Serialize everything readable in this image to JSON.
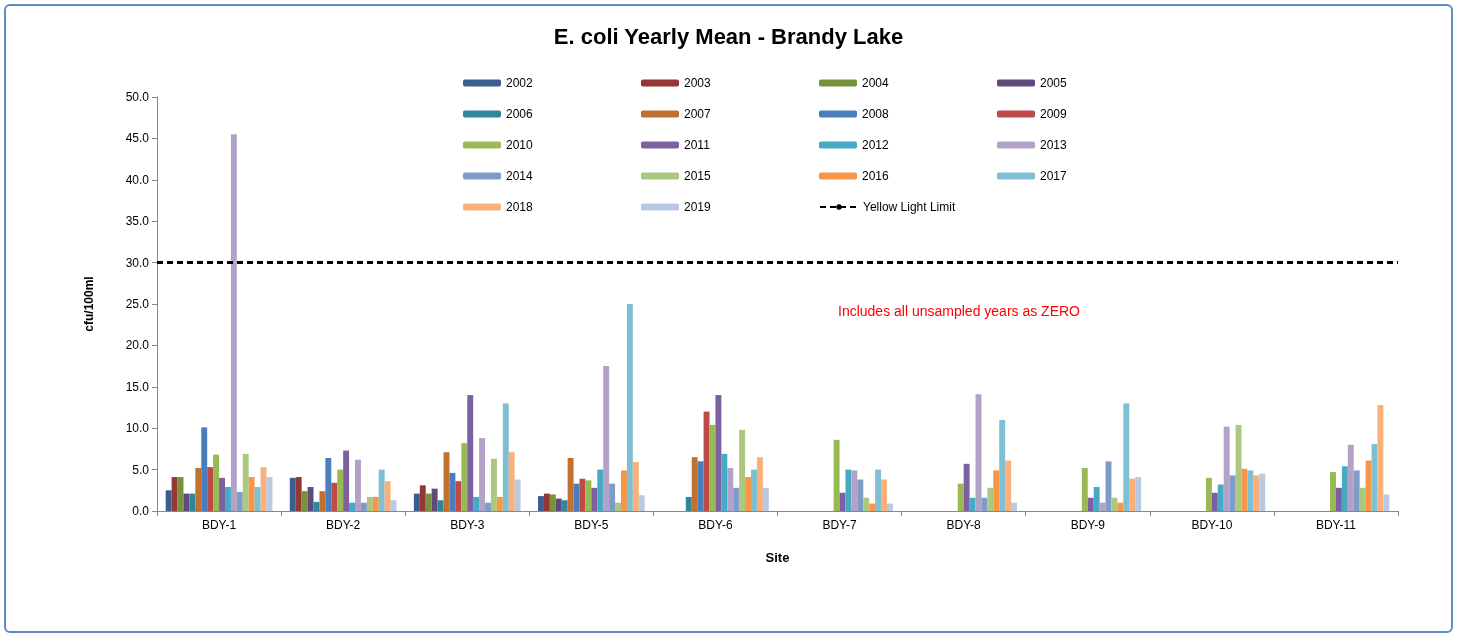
{
  "chart_data": {
    "type": "bar",
    "title": "E. coli Yearly Mean - Brandy Lake",
    "xlabel": "Site",
    "ylabel": "cfu/100ml",
    "categories": [
      "BDY-1",
      "BDY-2",
      "BDY-3",
      "BDY-5",
      "BDY-6",
      "BDY-7",
      "BDY-8",
      "BDY-9",
      "BDY-10",
      "BDY-11"
    ],
    "series": [
      {
        "name": "2002",
        "color": "#3b5e91",
        "values": [
          2.5,
          4.0,
          2.1,
          1.8,
          0,
          0,
          0,
          0,
          0,
          0
        ]
      },
      {
        "name": "2003",
        "color": "#953735",
        "values": [
          4.1,
          4.1,
          3.1,
          2.1,
          0,
          0,
          0,
          0,
          0,
          0
        ]
      },
      {
        "name": "2004",
        "color": "#77933c",
        "values": [
          4.1,
          2.4,
          2.1,
          2.0,
          0,
          0,
          0,
          0,
          0,
          0
        ]
      },
      {
        "name": "2005",
        "color": "#5f4a7b",
        "values": [
          2.1,
          2.9,
          2.7,
          1.5,
          0,
          0,
          0,
          0,
          0,
          0
        ]
      },
      {
        "name": "2006",
        "color": "#31859c",
        "values": [
          2.1,
          1.1,
          1.3,
          1.3,
          1.7,
          0,
          0,
          0,
          0,
          0
        ]
      },
      {
        "name": "2007",
        "color": "#c0712f",
        "values": [
          5.2,
          2.4,
          7.1,
          6.4,
          6.5,
          0,
          0,
          0,
          0,
          0
        ]
      },
      {
        "name": "2008",
        "color": "#4a7ebb",
        "values": [
          10.1,
          6.4,
          4.6,
          3.3,
          6.0,
          0,
          0,
          0,
          0,
          0
        ]
      },
      {
        "name": "2009",
        "color": "#be4b48",
        "values": [
          5.3,
          3.4,
          3.6,
          3.9,
          12.0,
          0,
          0,
          0,
          0,
          0
        ]
      },
      {
        "name": "2010",
        "color": "#98b954",
        "values": [
          6.8,
          5.0,
          8.2,
          3.7,
          10.4,
          8.6,
          3.3,
          5.2,
          4.0,
          4.7
        ]
      },
      {
        "name": "2011",
        "color": "#7d60a0",
        "values": [
          4.0,
          7.3,
          14.0,
          2.8,
          14.0,
          2.2,
          5.7,
          1.6,
          2.2,
          2.8
        ]
      },
      {
        "name": "2012",
        "color": "#46aac5",
        "values": [
          2.9,
          1.0,
          1.7,
          5.0,
          6.9,
          5.0,
          1.6,
          2.9,
          3.2,
          5.4
        ]
      },
      {
        "name": "2013",
        "color": "#b3a2c7",
        "values": [
          45.5,
          6.2,
          8.8,
          17.5,
          5.2,
          4.9,
          14.1,
          1.0,
          10.2,
          8.0
        ]
      },
      {
        "name": "2014",
        "color": "#7f9cc9",
        "values": [
          2.3,
          1.0,
          1.0,
          3.3,
          2.8,
          3.8,
          1.6,
          6.0,
          4.3,
          4.9
        ]
      },
      {
        "name": "2015",
        "color": "#abc880",
        "values": [
          6.9,
          1.7,
          6.3,
          1.0,
          9.8,
          1.6,
          2.8,
          1.6,
          10.4,
          2.8
        ]
      },
      {
        "name": "2016",
        "color": "#f79646",
        "values": [
          4.1,
          1.7,
          1.7,
          4.9,
          4.1,
          0.9,
          4.9,
          1.0,
          5.1,
          6.1
        ]
      },
      {
        "name": "2017",
        "color": "#7fbfd3",
        "values": [
          2.9,
          5.0,
          13.0,
          25.0,
          5.0,
          5.0,
          11.0,
          13.0,
          4.9,
          8.1
        ]
      },
      {
        "name": "2018",
        "color": "#f9b07a",
        "values": [
          5.3,
          3.6,
          7.1,
          5.9,
          6.5,
          3.8,
          6.1,
          3.9,
          4.3,
          12.8
        ]
      },
      {
        "name": "2019",
        "color": "#b9c8e3",
        "values": [
          4.1,
          1.3,
          3.8,
          1.9,
          2.8,
          0.9,
          1.0,
          4.1,
          4.5,
          2.0
        ]
      }
    ],
    "ylim": [
      0,
      50
    ],
    "yticks": [
      {
        "value": 0,
        "label": "0.0"
      },
      {
        "value": 5,
        "label": "5.0"
      },
      {
        "value": 10,
        "label": "10.0"
      },
      {
        "value": 15,
        "label": "15.0"
      },
      {
        "value": 20,
        "label": "20.0"
      },
      {
        "value": 25,
        "label": "25.0"
      },
      {
        "value": 30,
        "label": "30.0"
      },
      {
        "value": 35,
        "label": "35.0"
      },
      {
        "value": 40,
        "label": "40.0"
      },
      {
        "value": 45,
        "label": "45.0"
      },
      {
        "value": 50,
        "label": "50.0"
      }
    ],
    "ref_lines": [
      {
        "axis": "y",
        "value": 30,
        "label": "Yellow Light Limit",
        "color": "#000000",
        "line_style": "dashed"
      }
    ],
    "annotations": [
      "Includes all unsampled years as ZERO"
    ],
    "legend": "top",
    "grid": false
  }
}
